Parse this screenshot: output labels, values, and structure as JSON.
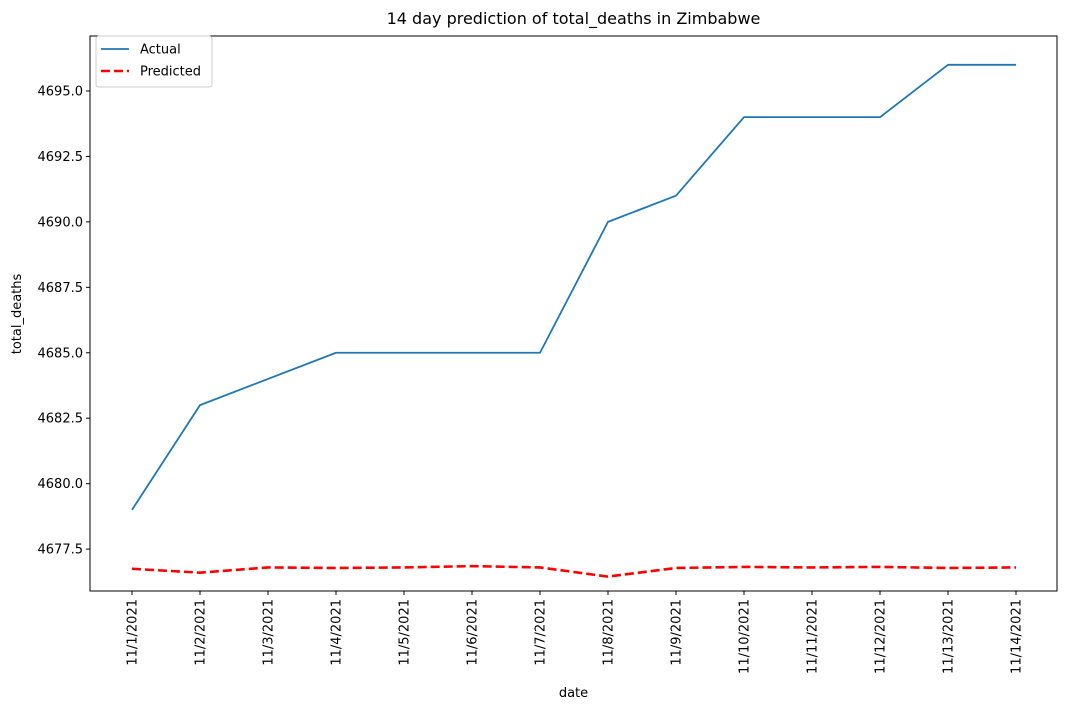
{
  "chart_data": {
    "type": "line",
    "title": "14 day prediction of total_deaths in Zimbabwe",
    "xlabel": "date",
    "ylabel": "total_deaths",
    "categories": [
      "11/1/2021",
      "11/2/2021",
      "11/3/2021",
      "11/4/2021",
      "11/5/2021",
      "11/6/2021",
      "11/7/2021",
      "11/8/2021",
      "11/9/2021",
      "11/10/2021",
      "11/11/2021",
      "11/12/2021",
      "11/13/2021",
      "11/14/2021"
    ],
    "series": [
      {
        "name": "Actual",
        "color": "#1f77b4",
        "style": "solid",
        "values": [
          4679,
          4683,
          4684,
          4685,
          4685,
          4685,
          4685,
          4690,
          4691,
          4694,
          4694,
          4694,
          4696,
          4696
        ]
      },
      {
        "name": "Predicted",
        "color": "#ff0000",
        "style": "dashed",
        "values": [
          4676.75,
          4676.6,
          4676.8,
          4676.78,
          4676.8,
          4676.85,
          4676.8,
          4676.45,
          4676.78,
          4676.82,
          4676.8,
          4676.82,
          4676.78,
          4676.8
        ]
      }
    ],
    "ylim": [
      4675.9,
      4697.1
    ],
    "yticks": [
      4677.5,
      4680.0,
      4682.5,
      4685.0,
      4687.5,
      4690.0,
      4692.5,
      4695.0
    ],
    "grid": false,
    "legend": "top-left"
  }
}
